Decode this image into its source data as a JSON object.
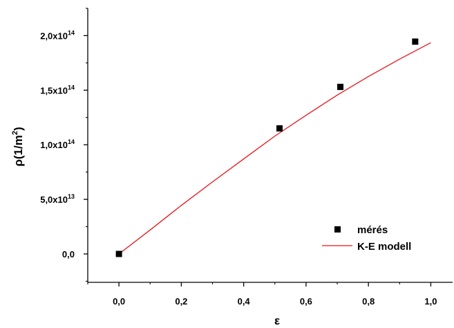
{
  "chart_data": {
    "type": "scatter",
    "xlabel": "ε",
    "ylabel_base": "ρ(1/m",
    "ylabel_sup": "2",
    "ylabel_end": ")",
    "xlim": [
      -0.1,
      1.07
    ],
    "ylim": [
      -26000000000000.0,
      225000000000000.0
    ],
    "xticks": [
      {
        "value": 0.0,
        "label": "0,0"
      },
      {
        "value": 0.2,
        "label": "0,2"
      },
      {
        "value": 0.4,
        "label": "0,4"
      },
      {
        "value": 0.6,
        "label": "0,6"
      },
      {
        "value": 0.8,
        "label": "0,8"
      },
      {
        "value": 1.0,
        "label": "1,0"
      }
    ],
    "yticks": [
      {
        "value": 0,
        "base": "0,0",
        "exp": ""
      },
      {
        "value": 50000000000000.0,
        "base": "5,0x10",
        "exp": "13"
      },
      {
        "value": 100000000000000.0,
        "base": "1,0x10",
        "exp": "14"
      },
      {
        "value": 150000000000000.0,
        "base": "1,5x10",
        "exp": "14"
      },
      {
        "value": 200000000000000.0,
        "base": "2,0x10",
        "exp": "14"
      }
    ],
    "series": [
      {
        "name": "mérés",
        "kind": "scatter",
        "marker": "square",
        "color": "#000000",
        "points": [
          [
            0.0,
            0.0
          ],
          [
            0.515,
            115000000000000.0
          ],
          [
            0.71,
            153000000000000.0
          ],
          [
            0.95,
            194500000000000.0
          ]
        ]
      },
      {
        "name": "K-E modell",
        "kind": "line",
        "color": "#e8141b",
        "points": [
          [
            0.0,
            0.0
          ],
          [
            0.1,
            22000000000000.0
          ],
          [
            0.2,
            44500000000000.0
          ],
          [
            0.3,
            66000000000000.0
          ],
          [
            0.4,
            87000000000000.0
          ],
          [
            0.5,
            108000000000000.0
          ],
          [
            0.6,
            127000000000000.0
          ],
          [
            0.7,
            145500000000000.0
          ],
          [
            0.8,
            162500000000000.0
          ],
          [
            0.9,
            178500000000000.0
          ],
          [
            1.0,
            193500000000000.0
          ]
        ]
      }
    ],
    "legend_position": "bottom-right"
  }
}
